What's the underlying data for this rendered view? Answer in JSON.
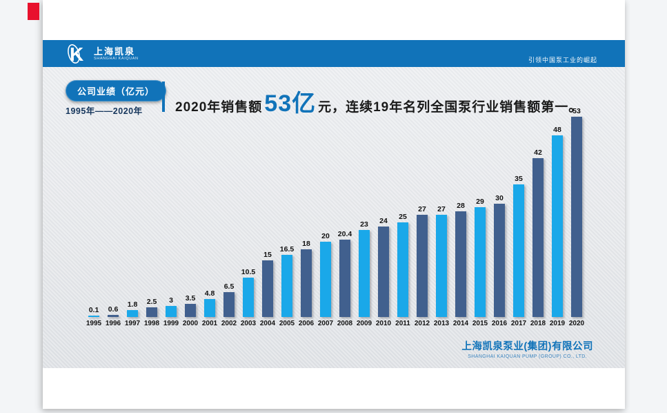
{
  "colors": {
    "page_bg": "#f3f5f7",
    "header_blue": "#1173b9",
    "accent_red": "#e8112d",
    "bar_cyan": "#1aa8e9",
    "bar_navy": "#41608e",
    "text_dark": "#1a1a1a",
    "text_navy": "#16365c"
  },
  "header": {
    "logo_cn": "上海凯泉",
    "logo_en": "SHANGHAI KAIQUAN",
    "slogan": "引领中国泵工业的崛起"
  },
  "badge": {
    "label": "公司业绩（亿元）",
    "range": "1995年——2020年"
  },
  "headline": {
    "prefix": "2020年销售额",
    "highlight": "53亿",
    "suffix": "元，连续19年名列全国泵行业销售额第一。"
  },
  "footer": {
    "company_cn": "上海凯泉泵业(集团)有限公司",
    "company_en": "SHANGHAI KAIQUAN PUMP (GROUP) CO., LTD."
  },
  "chart_data": {
    "type": "bar",
    "title": "公司业绩（亿元） 1995年——2020年",
    "xlabel": "",
    "ylabel": "",
    "ylim": [
      0,
      53
    ],
    "grid": false,
    "legend": "none",
    "data_labels": true,
    "categories": [
      "1995",
      "1996",
      "1997",
      "1998",
      "1999",
      "2000",
      "2001",
      "2002",
      "2003",
      "2004",
      "2005",
      "2006",
      "2007",
      "2008",
      "2009",
      "2010",
      "2011",
      "2012",
      "2013",
      "2014",
      "2015",
      "2016",
      "2017",
      "2018",
      "2019",
      "2020"
    ],
    "values": [
      0.1,
      0.6,
      1.8,
      2.5,
      3,
      3.5,
      4.8,
      6.5,
      10.5,
      15,
      16.5,
      18,
      20,
      20.4,
      23,
      24,
      25,
      27,
      27,
      28,
      29,
      30,
      35,
      42,
      48,
      53
    ],
    "bar_colors": [
      "#1aa8e9",
      "#41608e"
    ]
  }
}
